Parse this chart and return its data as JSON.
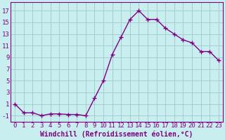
{
  "x": [
    0,
    1,
    2,
    3,
    4,
    5,
    6,
    7,
    8,
    9,
    10,
    11,
    12,
    13,
    14,
    15,
    16,
    17,
    18,
    19,
    20,
    21,
    22,
    23
  ],
  "y": [
    1,
    -0.5,
    -0.5,
    -1,
    -0.7,
    -0.7,
    -0.8,
    -0.8,
    -1,
    2,
    5,
    9.5,
    12.5,
    15.5,
    17,
    15.5,
    15.5,
    14,
    13,
    12,
    11.5,
    10,
    10,
    8.5
  ],
  "line_color": "#800080",
  "marker": "+",
  "bg_color": "#c8eef0",
  "grid_color": "#a0c8cc",
  "xlabel": "Windchill (Refroidissement éolien,°C)",
  "ylabel_ticks": [
    -1,
    1,
    3,
    5,
    7,
    9,
    11,
    13,
    15,
    17
  ],
  "xtick_labels": [
    "0",
    "1",
    "2",
    "3",
    "4",
    "5",
    "6",
    "7",
    "8",
    "9",
    "10",
    "11",
    "12",
    "13",
    "14",
    "15",
    "16",
    "17",
    "18",
    "19",
    "20",
    "21",
    "22",
    "23"
  ],
  "ylim": [
    -2,
    18.5
  ],
  "xlim": [
    -0.5,
    23.5
  ],
  "label_color": "#800080",
  "xlabel_fontsize": 7,
  "tick_fontsize": 6.5,
  "marker_size": 4,
  "line_width": 1.0,
  "marker_edge_width": 1.0
}
